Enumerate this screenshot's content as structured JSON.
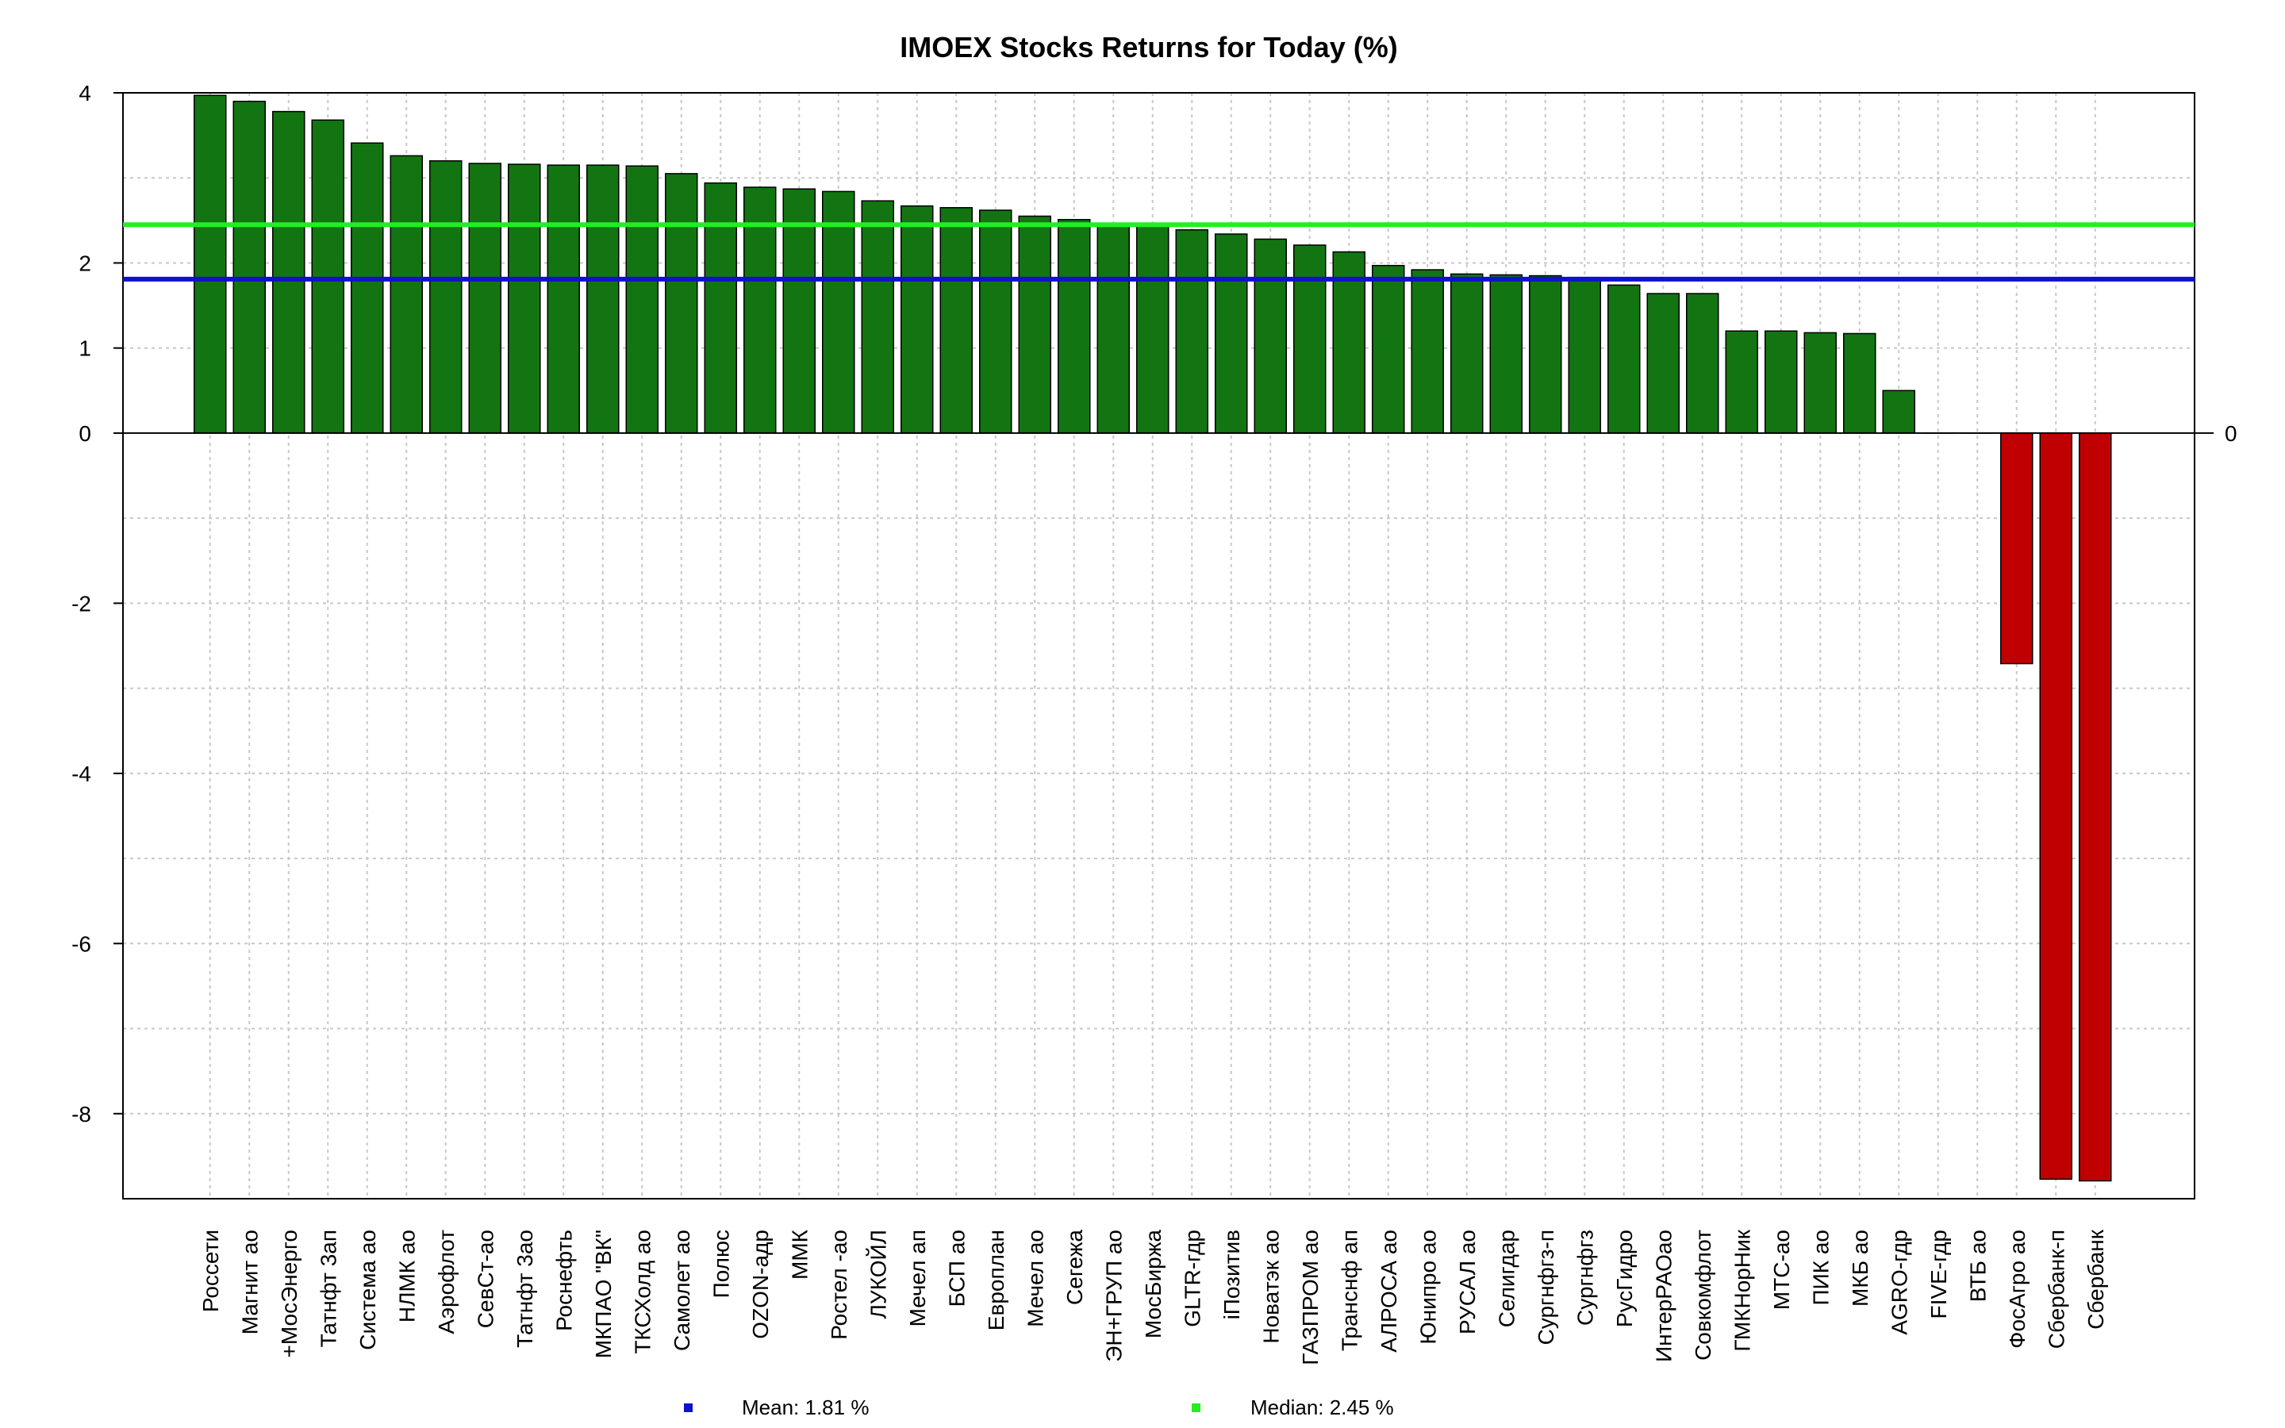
{
  "chart_data": {
    "type": "bar",
    "title": "IMOEX Stocks Returns for Today (%)",
    "xlabel": "",
    "ylabel": "",
    "ylim": [
      -9,
      4
    ],
    "yticks": [
      4,
      2,
      1,
      0,
      -2,
      -4,
      -6,
      -8
    ],
    "right_axis_ticks": [
      0
    ],
    "grid": true,
    "colors": {
      "positive": "#127512",
      "negative": "#c00000",
      "mean": "#1010d0",
      "median": "#22ee22"
    },
    "categories": [
      "Россети",
      "Магнит ао",
      "+МосЭнерго",
      "Татнфт 3ап",
      "Система ао",
      "НЛМК ао",
      "Аэрофлот",
      "СевСт-ао",
      "Татнфт 3ао",
      "Роснефть",
      "МКПАО \"ВК\"",
      "ТКСХолд ао",
      "Самолет ао",
      "Полюс",
      "OZON-адр",
      "ММК",
      "Ростел -ао",
      "ЛУКОЙЛ",
      "Мечел ап",
      "БСП ао",
      "Европлан",
      "Мечел ао",
      "Сегежа",
      "ЭН+ГРУП ао",
      "МосБиржа",
      "GLTR-гдр",
      "iПозитив",
      "Новатэк ао",
      "ГАЗПРОМ ао",
      "Транснф ап",
      "АЛРОСА ао",
      "Юнипро ао",
      "РУСАЛ ао",
      "Селигдар",
      "Сургнфгз-п",
      "Сургнфгз",
      "РусГидро",
      "ИнтерРАОао",
      "Совкомфлот",
      "ГМКНорНик",
      "МТС-ао",
      "ПИК ао",
      "МКБ ао",
      "AGRO-гдр",
      "FIVE-гдр",
      "ВТБ ао",
      "ФосАгро ао",
      "Сбербанк-п",
      "Сбербанк"
    ],
    "values": [
      3.97,
      3.9,
      3.78,
      3.68,
      3.41,
      3.26,
      3.2,
      3.17,
      3.16,
      3.15,
      3.15,
      3.14,
      3.05,
      2.94,
      2.89,
      2.87,
      2.84,
      2.73,
      2.67,
      2.65,
      2.62,
      2.55,
      2.51,
      2.46,
      2.45,
      2.39,
      2.34,
      2.28,
      2.21,
      2.13,
      1.97,
      1.92,
      1.87,
      1.86,
      1.85,
      1.83,
      1.74,
      1.64,
      1.64,
      1.2,
      1.2,
      1.18,
      1.17,
      0.5,
      0.0,
      0.0,
      -2.71,
      -8.77,
      -8.79
    ],
    "mean": 1.81,
    "median": 2.45,
    "legend": [
      {
        "label": "Mean: 1.81 %",
        "color": "#1010d0"
      },
      {
        "label": "Median: 2.45 %",
        "color": "#22ee22"
      }
    ],
    "legend_position": "bottom"
  }
}
